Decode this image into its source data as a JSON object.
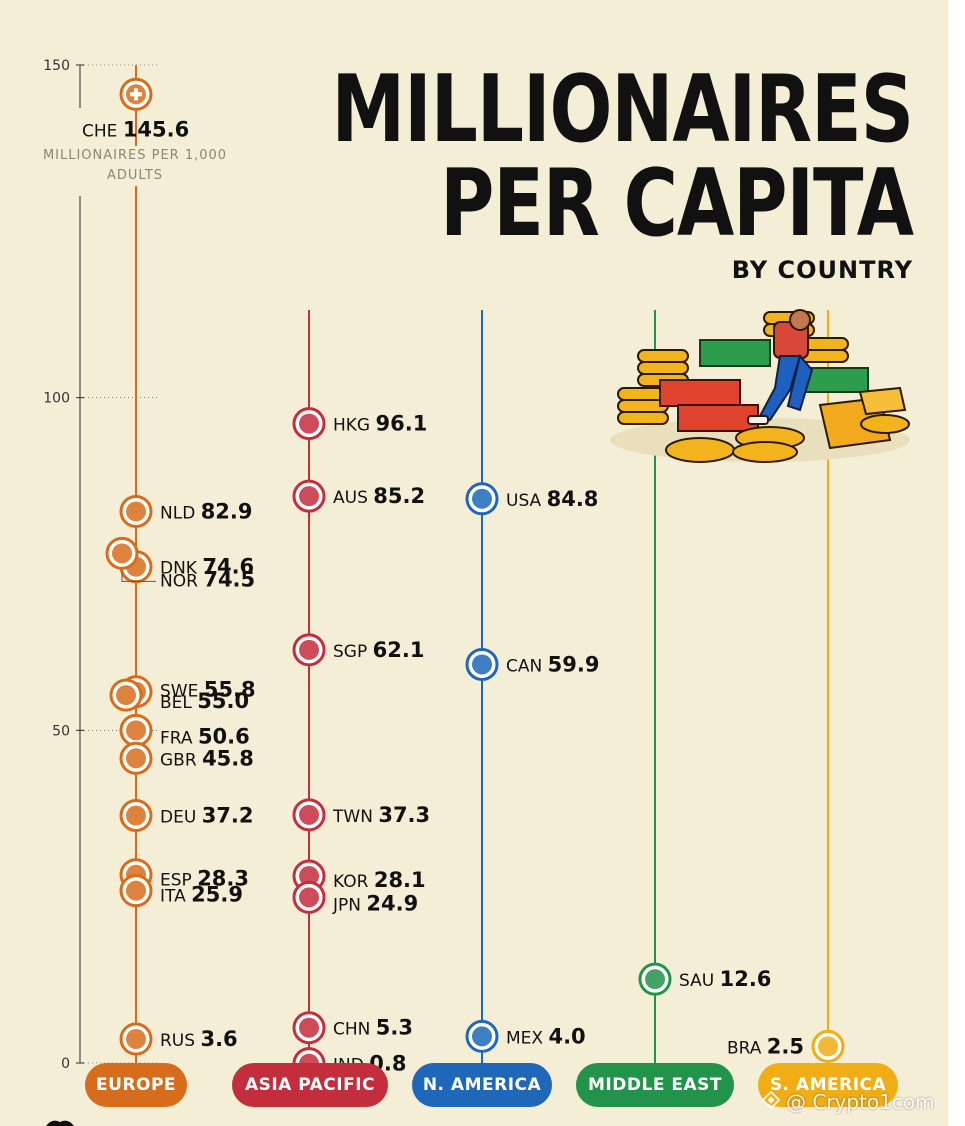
{
  "title": {
    "line1": "MILLIONAIRES",
    "line2": "PER CAPITA",
    "subtitle": "BY COUNTRY"
  },
  "watermark": "@ Crypto1com",
  "chart_data": {
    "type": "scatter",
    "ylabel": "MILLIONAIRES PER 1,000 ADULTS",
    "ylim": [
      0,
      150
    ],
    "yticks": [
      0,
      50,
      100,
      150
    ],
    "series": [
      {
        "name": "EUROPE",
        "color": "#d76d1c",
        "points": [
          {
            "label": "CHE",
            "value": 145.6,
            "value_text": "145.6"
          },
          {
            "label": "NLD",
            "value": 82.9,
            "value_text": "82.9"
          },
          {
            "label": "DNK",
            "value": 74.6,
            "value_text": "74.6"
          },
          {
            "label": "NOR",
            "value": 74.5,
            "value_text": "74.5"
          },
          {
            "label": "SWE",
            "value": 55.8,
            "value_text": "55.8"
          },
          {
            "label": "BEL",
            "value": 55.0,
            "value_text": "55.0"
          },
          {
            "label": "FRA",
            "value": 50.6,
            "value_text": "50.6"
          },
          {
            "label": "GBR",
            "value": 45.8,
            "value_text": "45.8"
          },
          {
            "label": "DEU",
            "value": 37.2,
            "value_text": "37.2"
          },
          {
            "label": "ESP",
            "value": 28.3,
            "value_text": "28.3"
          },
          {
            "label": "ITA",
            "value": 25.9,
            "value_text": "25.9"
          },
          {
            "label": "RUS",
            "value": 3.6,
            "value_text": "3.6"
          }
        ]
      },
      {
        "name": "ASIA PACIFIC",
        "color": "#c42d3c",
        "points": [
          {
            "label": "HKG",
            "value": 96.1,
            "value_text": "96.1"
          },
          {
            "label": "AUS",
            "value": 85.2,
            "value_text": "85.2"
          },
          {
            "label": "SGP",
            "value": 62.1,
            "value_text": "62.1"
          },
          {
            "label": "TWN",
            "value": 37.3,
            "value_text": "37.3"
          },
          {
            "label": "KOR",
            "value": 28.1,
            "value_text": "28.1"
          },
          {
            "label": "JPN",
            "value": 24.9,
            "value_text": "24.9"
          },
          {
            "label": "CHN",
            "value": 5.3,
            "value_text": "5.3"
          },
          {
            "label": "IND",
            "value": 0.8,
            "value_text": "0.8"
          }
        ]
      },
      {
        "name": "N. AMERICA",
        "color": "#1f67b8",
        "points": [
          {
            "label": "USA",
            "value": 84.8,
            "value_text": "84.8"
          },
          {
            "label": "CAN",
            "value": 59.9,
            "value_text": "59.9"
          },
          {
            "label": "MEX",
            "value": 4.0,
            "value_text": "4.0"
          }
        ]
      },
      {
        "name": "MIDDLE EAST",
        "color": "#22934a",
        "points": [
          {
            "label": "SAU",
            "value": 12.6,
            "value_text": "12.6"
          }
        ]
      },
      {
        "name": "S. AMERICA",
        "color": "#f0ad16",
        "points": [
          {
            "label": "BRA",
            "value": 2.5,
            "value_text": "2.5"
          }
        ]
      }
    ]
  }
}
